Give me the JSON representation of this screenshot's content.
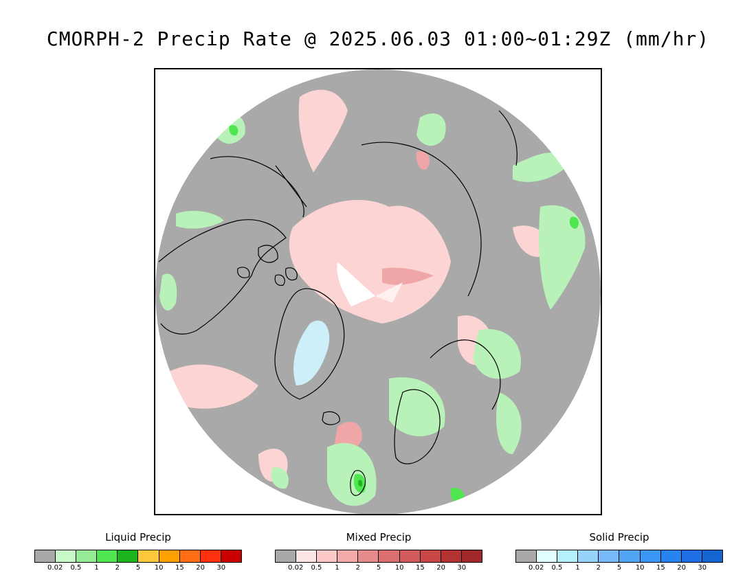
{
  "title": "CMORPH-2 Precip Rate @ 2025.06.03 01:00~01:29Z (mm/hr)",
  "map": {
    "projection": "north-polar-stereographic",
    "background_color": "#ffffff",
    "no_precip_color": "#a9a9a9",
    "coastline_color": "#000000"
  },
  "legends": [
    {
      "title": "Liquid Precip",
      "colors": [
        "#a9a9a9",
        "#c8fac8",
        "#96eb96",
        "#50e650",
        "#1eb41e",
        "#ffc83c",
        "#ffa000",
        "#ff6e14",
        "#ff3210",
        "#c80000"
      ],
      "ticks": [
        "0.02",
        "0.5",
        "1",
        "2",
        "5",
        "10",
        "15",
        "20",
        "30"
      ]
    },
    {
      "title": "Mixed Precip",
      "colors": [
        "#a9a9a9",
        "#ffe6e6",
        "#fcc8c8",
        "#f5aaaa",
        "#e68a8a",
        "#dc6e6e",
        "#d25a5a",
        "#c84646",
        "#b43232",
        "#a02828"
      ],
      "ticks": [
        "0.02",
        "0.5",
        "1",
        "2",
        "5",
        "10",
        "15",
        "20",
        "30"
      ]
    },
    {
      "title": "Solid Precip",
      "colors": [
        "#a9a9a9",
        "#e1ffff",
        "#b4f0fa",
        "#96d2fa",
        "#78b9fa",
        "#50a5f5",
        "#3c96f5",
        "#2882f0",
        "#1e6ee6",
        "#1464d2"
      ],
      "ticks": [
        "0.02",
        "0.5",
        "1",
        "2",
        "5",
        "10",
        "15",
        "20",
        "30"
      ]
    }
  ]
}
